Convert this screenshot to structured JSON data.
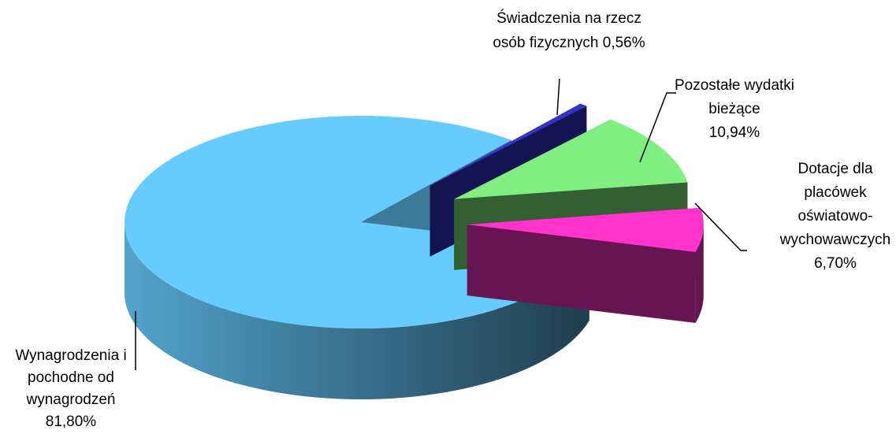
{
  "chart_data": {
    "type": "pie",
    "categories": [
      "Wynagrodzenia i pochodne od wynagrodzeń",
      "Świadczenia na rzecz osób fizycznych",
      "Pozostałe wydatki bieżące",
      "Dotacje dla placówek oświatowo-wychowawczych"
    ],
    "values": [
      81.8,
      0.56,
      10.94,
      6.7
    ],
    "value_labels": [
      "81,80%",
      "0,56%",
      "10,94%",
      "6,70%"
    ],
    "colors": [
      "#66ccff",
      "#3333cc",
      "#80ee80",
      "#ff33cc"
    ]
  }
}
